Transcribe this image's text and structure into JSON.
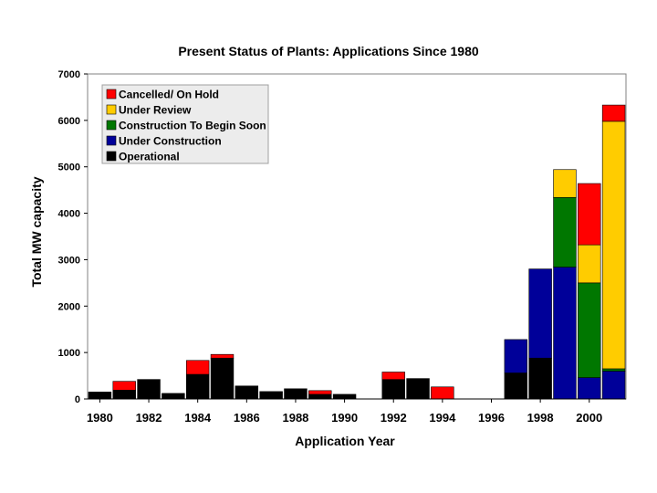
{
  "chart_data": {
    "type": "bar",
    "stacked": true,
    "title": "Present Status of Plants:  Applications Since 1980",
    "xlabel": "Application Year",
    "ylabel": "Total MW capacity",
    "ylim": [
      0,
      7000
    ],
    "yticks": [
      0,
      1000,
      2000,
      3000,
      4000,
      5000,
      6000,
      7000
    ],
    "xtick_labels": [
      "1980",
      "1982",
      "1984",
      "1986",
      "1988",
      "1990",
      "1992",
      "1994",
      "1996",
      "1998",
      "2000"
    ],
    "grid": false,
    "legend_position": "top-left",
    "categories": [
      "1980",
      "1981",
      "1982",
      "1983",
      "1984",
      "1985",
      "1986",
      "1987",
      "1988",
      "1989",
      "1990",
      "1991",
      "1992",
      "1993",
      "1994",
      "1995",
      "1996",
      "1997",
      "1998",
      "1999",
      "2000",
      "2001"
    ],
    "series": [
      {
        "name": "Operational",
        "color": "#000000",
        "values": [
          150,
          190,
          420,
          120,
          530,
          880,
          280,
          160,
          220,
          100,
          100,
          0,
          420,
          440,
          0,
          0,
          0,
          560,
          880,
          0,
          0,
          0
        ]
      },
      {
        "name": "Under Construction",
        "color": "#000099",
        "values": [
          0,
          0,
          0,
          0,
          0,
          0,
          0,
          0,
          0,
          0,
          0,
          0,
          0,
          0,
          0,
          0,
          0,
          720,
          1920,
          2840,
          460,
          600
        ]
      },
      {
        "name": "Construction To Begin Soon",
        "color": "#007700",
        "values": [
          0,
          0,
          0,
          0,
          0,
          0,
          0,
          0,
          0,
          0,
          0,
          0,
          0,
          0,
          0,
          0,
          0,
          0,
          0,
          1500,
          2040,
          50
        ]
      },
      {
        "name": "Under Review",
        "color": "#ffcc00",
        "values": [
          0,
          0,
          0,
          0,
          0,
          0,
          0,
          0,
          0,
          0,
          0,
          0,
          0,
          0,
          0,
          0,
          0,
          0,
          0,
          600,
          820,
          5330
        ]
      },
      {
        "name": "Cancelled/ On Hold",
        "color": "#ff0000",
        "values": [
          0,
          190,
          0,
          0,
          300,
          80,
          0,
          0,
          0,
          80,
          0,
          0,
          160,
          0,
          260,
          0,
          0,
          0,
          0,
          0,
          1320,
          350
        ]
      }
    ],
    "legend_order": [
      "Cancelled/ On Hold",
      "Under Review",
      "Construction To Begin Soon",
      "Under Construction",
      "Operational"
    ]
  }
}
